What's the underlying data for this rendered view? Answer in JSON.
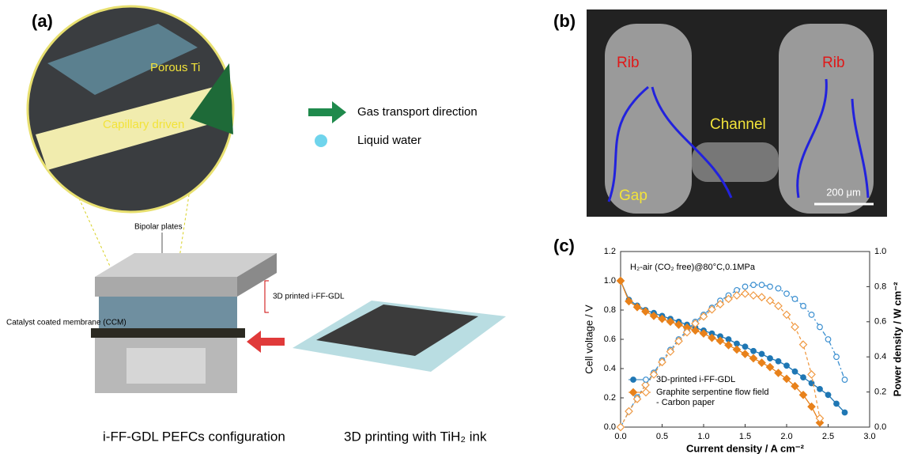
{
  "panel_a": {
    "label": "(a)",
    "porous": "Porous Ti",
    "capillary": "Capillary driven",
    "gas": "Gas transport direction",
    "water": "Liquid water",
    "bipolar": "Bipolar plates",
    "gdl": "3D printed i-FF-GDL",
    "ccm": "Catalyst coated membrane (CCM)",
    "caption_left": "i-FF-GDL PEFCs configuration",
    "caption_right": "3D printing with TiH₂ ink"
  },
  "panel_b": {
    "label": "(b)",
    "rib_left": "Rib",
    "rib_right": "Rib",
    "channel": "Channel",
    "gap": "Gap",
    "scale": "200 μm"
  },
  "chart_data": {
    "type": "line",
    "label": "(c)",
    "annotation": "H₂-air (CO₂ free)@80°C,0.1MPa",
    "xlabel": "Current density / A cm⁻²",
    "ylabel": "Cell voltage / V",
    "y2label": "Power density / W cm⁻²",
    "xlim": [
      0,
      3.0
    ],
    "xticks": [
      {
        "value": 0,
        "label": "0.0"
      },
      0.5,
      {
        "value": 1,
        "label": "1.0"
      },
      1.5,
      {
        "value": 2,
        "label": "2.0"
      },
      2.5,
      {
        "value": 3,
        "label": "3.0"
      }
    ],
    "ylim": [
      0,
      1.2
    ],
    "yticks": [
      {
        "value": 0,
        "label": "0.0"
      },
      0.2,
      0.4,
      0.6,
      0.8,
      {
        "value": 1,
        "label": "1.0"
      },
      1.2
    ],
    "y2lim": [
      0,
      1.0
    ],
    "y2ticks": [
      {
        "value": 0,
        "label": "0.0"
      },
      0.2,
      0.4,
      0.6,
      0.8,
      {
        "value": 1,
        "label": "1.0"
      }
    ],
    "series": [
      {
        "name": "3D-printed i-FF-GDL",
        "color": "#1f77b4",
        "marker": "circle",
        "filled": true,
        "axis": "y",
        "dash": "",
        "x": [
          0,
          0.1,
          0.2,
          0.3,
          0.4,
          0.5,
          0.6,
          0.7,
          0.8,
          0.9,
          1.0,
          1.1,
          1.2,
          1.3,
          1.4,
          1.5,
          1.6,
          1.7,
          1.8,
          1.9,
          2.0,
          2.1,
          2.2,
          2.3,
          2.4,
          2.5,
          2.6,
          2.7
        ],
        "values": [
          1.0,
          0.87,
          0.83,
          0.8,
          0.78,
          0.76,
          0.74,
          0.72,
          0.7,
          0.68,
          0.66,
          0.64,
          0.62,
          0.6,
          0.57,
          0.55,
          0.52,
          0.5,
          0.47,
          0.45,
          0.42,
          0.38,
          0.34,
          0.3,
          0.26,
          0.22,
          0.16,
          0.1
        ]
      },
      {
        "color": "#3b8fd0",
        "marker": "circle",
        "filled": false,
        "axis": "y2",
        "dash": "6 3 2 3",
        "x": [
          0,
          0.1,
          0.2,
          0.3,
          0.4,
          0.5,
          0.6,
          0.7,
          0.8,
          0.9,
          1.0,
          1.1,
          1.2,
          1.3,
          1.4,
          1.5,
          1.6,
          1.7,
          1.8,
          1.9,
          2.0,
          2.1,
          2.2,
          2.3,
          2.4,
          2.5,
          2.6,
          2.7
        ],
        "values": [
          0,
          0.09,
          0.17,
          0.24,
          0.31,
          0.38,
          0.44,
          0.5,
          0.55,
          0.6,
          0.64,
          0.68,
          0.72,
          0.75,
          0.78,
          0.8,
          0.81,
          0.81,
          0.8,
          0.79,
          0.76,
          0.73,
          0.69,
          0.64,
          0.57,
          0.5,
          0.4,
          0.27
        ]
      },
      {
        "name": "Graphite serpentine flow field - Carbon paper",
        "color": "#e8811a",
        "marker": "diamond",
        "filled": true,
        "axis": "y",
        "dash": "",
        "x": [
          0,
          0.1,
          0.2,
          0.3,
          0.4,
          0.5,
          0.6,
          0.7,
          0.8,
          0.9,
          1.0,
          1.1,
          1.2,
          1.3,
          1.4,
          1.5,
          1.6,
          1.7,
          1.8,
          1.9,
          2.0,
          2.1,
          2.2,
          2.3,
          2.4
        ],
        "values": [
          1.0,
          0.86,
          0.82,
          0.79,
          0.76,
          0.74,
          0.72,
          0.7,
          0.68,
          0.66,
          0.64,
          0.61,
          0.59,
          0.56,
          0.53,
          0.5,
          0.47,
          0.44,
          0.41,
          0.37,
          0.33,
          0.28,
          0.22,
          0.14,
          0.03
        ]
      },
      {
        "color": "#f09a44",
        "marker": "diamond",
        "filled": false,
        "axis": "y2",
        "dash": "4 3",
        "x": [
          0,
          0.1,
          0.2,
          0.3,
          0.4,
          0.5,
          0.6,
          0.7,
          0.8,
          0.9,
          1.0,
          1.1,
          1.2,
          1.3,
          1.4,
          1.5,
          1.6,
          1.7,
          1.8,
          1.9,
          2.0,
          2.1,
          2.2,
          2.3,
          2.4
        ],
        "values": [
          0,
          0.09,
          0.16,
          0.24,
          0.3,
          0.37,
          0.43,
          0.49,
          0.54,
          0.59,
          0.63,
          0.67,
          0.7,
          0.73,
          0.75,
          0.76,
          0.75,
          0.74,
          0.72,
          0.69,
          0.64,
          0.57,
          0.47,
          0.3,
          0.05
        ]
      }
    ]
  }
}
